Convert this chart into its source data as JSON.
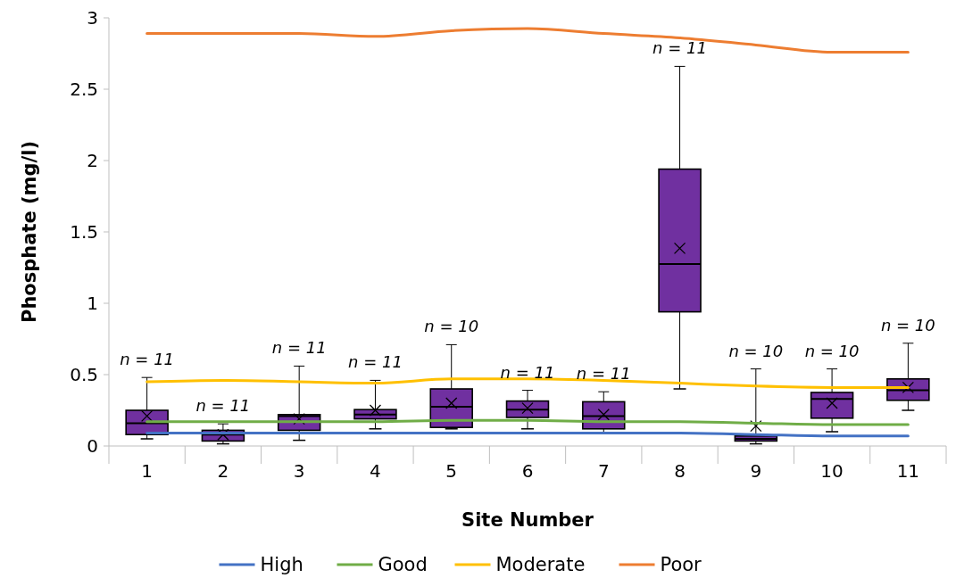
{
  "chart_data": {
    "type": "box",
    "xlabel": "Site Number",
    "ylabel": "Phosphate (mg/l)",
    "categories": [
      "1",
      "2",
      "3",
      "4",
      "5",
      "6",
      "7",
      "8",
      "9",
      "10",
      "11"
    ],
    "color": "#7030a0",
    "boxes": [
      {
        "low": 0.05,
        "q1": 0.08,
        "median": 0.16,
        "q3": 0.25,
        "high": 0.48,
        "mean": 0.21
      },
      {
        "low": 0.015,
        "q1": 0.035,
        "median": 0.08,
        "q3": 0.11,
        "high": 0.155,
        "mean": 0.08
      },
      {
        "low": 0.04,
        "q1": 0.11,
        "median": 0.21,
        "q3": 0.22,
        "high": 0.56,
        "mean": 0.19
      },
      {
        "low": 0.12,
        "q1": 0.19,
        "median": 0.22,
        "q3": 0.255,
        "high": 0.46,
        "mean": 0.25
      },
      {
        "low": 0.12,
        "q1": 0.13,
        "median": 0.275,
        "q3": 0.4,
        "high": 0.71,
        "mean": 0.3
      },
      {
        "low": 0.12,
        "q1": 0.2,
        "median": 0.255,
        "q3": 0.315,
        "high": 0.39,
        "mean": 0.265
      },
      {
        "low": 0.095,
        "q1": 0.12,
        "median": 0.21,
        "q3": 0.31,
        "high": 0.38,
        "mean": 0.22
      },
      {
        "low": 0.4,
        "q1": 0.94,
        "median": 1.275,
        "q3": 1.94,
        "high": 2.66,
        "mean": 1.385
      },
      {
        "low": 0.015,
        "q1": 0.035,
        "median": 0.05,
        "q3": 0.07,
        "high": 0.54,
        "mean": 0.14
      },
      {
        "low": 0.1,
        "q1": 0.195,
        "median": 0.33,
        "q3": 0.375,
        "high": 0.54,
        "mean": 0.3
      },
      {
        "low": 0.25,
        "q1": 0.32,
        "median": 0.39,
        "q3": 0.47,
        "high": 0.72,
        "mean": 0.41
      }
    ],
    "series": [
      {
        "type": "line",
        "name": "High",
        "color": "#4472c4",
        "values": [
          0.09,
          0.09,
          0.09,
          0.09,
          0.09,
          0.09,
          0.09,
          0.09,
          0.08,
          0.07,
          0.07
        ]
      },
      {
        "type": "line",
        "name": "Good",
        "color": "#70ad47",
        "values": [
          0.17,
          0.17,
          0.17,
          0.17,
          0.18,
          0.18,
          0.17,
          0.17,
          0.16,
          0.15,
          0.15
        ]
      },
      {
        "type": "line",
        "name": "Moderate",
        "color": "#ffc000",
        "values": [
          0.45,
          0.46,
          0.45,
          0.44,
          0.47,
          0.47,
          0.46,
          0.44,
          0.42,
          0.41,
          0.41
        ]
      },
      {
        "type": "line",
        "name": "Poor",
        "color": "#ed7d31",
        "values": [
          2.89,
          2.89,
          2.89,
          2.87,
          2.91,
          2.925,
          2.89,
          2.86,
          2.81,
          2.76,
          2.76
        ]
      }
    ],
    "ylim": [
      0,
      3
    ],
    "yticks": [
      0,
      0.5,
      1,
      1.5,
      2,
      2.5,
      3
    ],
    "legend": "bottom",
    "marker": "none",
    "annotations": [
      {
        "text": "n = 11",
        "x": "1",
        "y": 0.48
      },
      {
        "text": "n = 11",
        "x": "2",
        "y": 0.155
      },
      {
        "text": "n = 11",
        "x": "3",
        "y": 0.56
      },
      {
        "text": "n = 11",
        "x": "4",
        "y": 0.46
      },
      {
        "text": "n = 10",
        "x": "5",
        "y": 0.71
      },
      {
        "text": "n = 11",
        "x": "6",
        "y": 0.39
      },
      {
        "text": "n = 11",
        "x": "7",
        "y": 0.38
      },
      {
        "text": "n = 11",
        "x": "8",
        "y": 2.66
      },
      {
        "text": "n = 10",
        "x": "9",
        "y": 0.54
      },
      {
        "text": "n = 10",
        "x": "10",
        "y": 0.54
      },
      {
        "text": "n = 10",
        "x": "11",
        "y": 0.72
      }
    ]
  }
}
